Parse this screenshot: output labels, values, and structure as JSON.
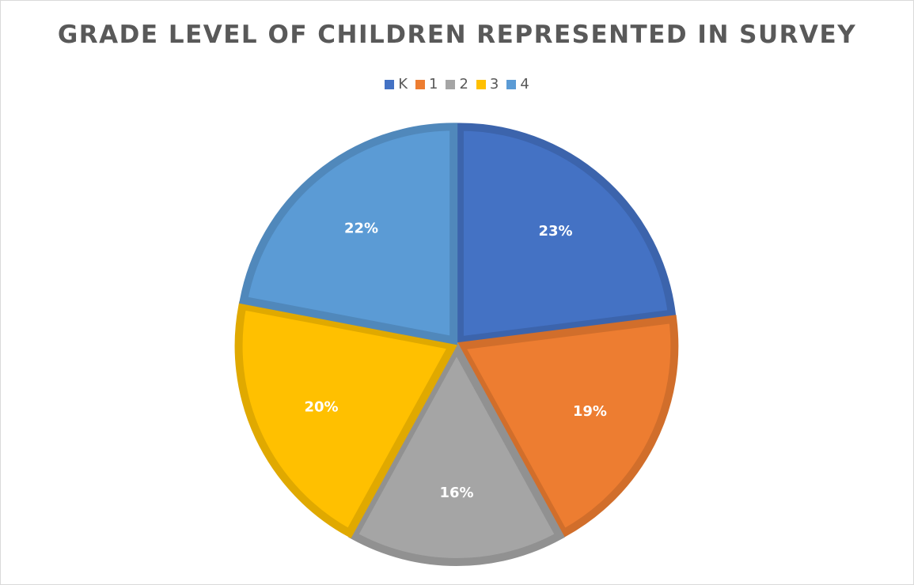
{
  "chart_data": {
    "type": "pie",
    "title": "GRADE LEVEL OF CHILDREN REPRESENTED IN SURVEY",
    "categories": [
      "K",
      "1",
      "2",
      "3",
      "4"
    ],
    "values": [
      23,
      19,
      16,
      20,
      22
    ],
    "labels": [
      "23%",
      "19%",
      "16%",
      "20%",
      "22%"
    ],
    "colors": [
      "#4472C4",
      "#ED7D31",
      "#A5A5A5",
      "#FFC000",
      "#5B9BD5"
    ],
    "legend_position": "top",
    "start_angle": "12 o'clock, clockwise"
  }
}
